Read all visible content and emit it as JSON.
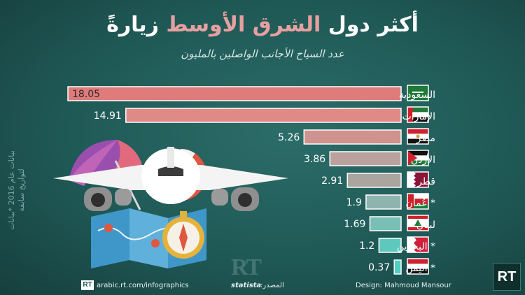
{
  "header": {
    "title_part1": "أكثر دول",
    "title_highlight": "الشرق الأوسط",
    "title_part3": "زيارةً",
    "subtitle": "عدد السياح الأجانب الواصلين بالمليون"
  },
  "side_note": "بيانات عام 2016 *بيانات لتواريخ سابقة",
  "footer": {
    "source_label": "المصدر:",
    "source_name": "statista",
    "website": "arabic.rt.com/infographics",
    "design_credit": "Design: Mahmoud Mansour",
    "logo_text": "RT"
  },
  "colors": {
    "background": "#1f5a57",
    "bar_scale": [
      "#e07b7b",
      "#e08a87",
      "#ce928f",
      "#bba19d",
      "#aba5a0",
      "#8eb4ae",
      "#79bfb6",
      "#5fc8bc",
      "#4fd1c1"
    ],
    "title_highlight": "#e7a0a0"
  },
  "chart_data": {
    "type": "bar",
    "orientation": "horizontal",
    "title": "أكثر دول الشرق الأوسط زيارةً",
    "subtitle": "عدد السياح الأجانب الواصلين بالمليون",
    "categories": [
      "السعودية",
      "الإمارات",
      "مصر",
      "الأردن",
      "قطر",
      "* عُمان",
      "لبنان",
      "* البحرين",
      "* اليمن"
    ],
    "flag_icons": [
      "flag-saudi-arabia-icon",
      "flag-uae-icon",
      "flag-egypt-icon",
      "flag-jordan-icon",
      "flag-qatar-icon",
      "flag-oman-icon",
      "flag-lebanon-icon",
      "flag-bahrain-icon",
      "flag-yemen-icon"
    ],
    "values": [
      18.05,
      14.91,
      5.26,
      3.86,
      2.91,
      1.9,
      1.69,
      1.2,
      0.37
    ],
    "value_labels": [
      "18.05",
      "14.91",
      "5.26",
      "3.86",
      "2.91",
      "1.9",
      "1.69",
      "1.2",
      "0.37"
    ],
    "xlim": [
      0,
      18.05
    ],
    "grid": false,
    "legend": "none"
  }
}
